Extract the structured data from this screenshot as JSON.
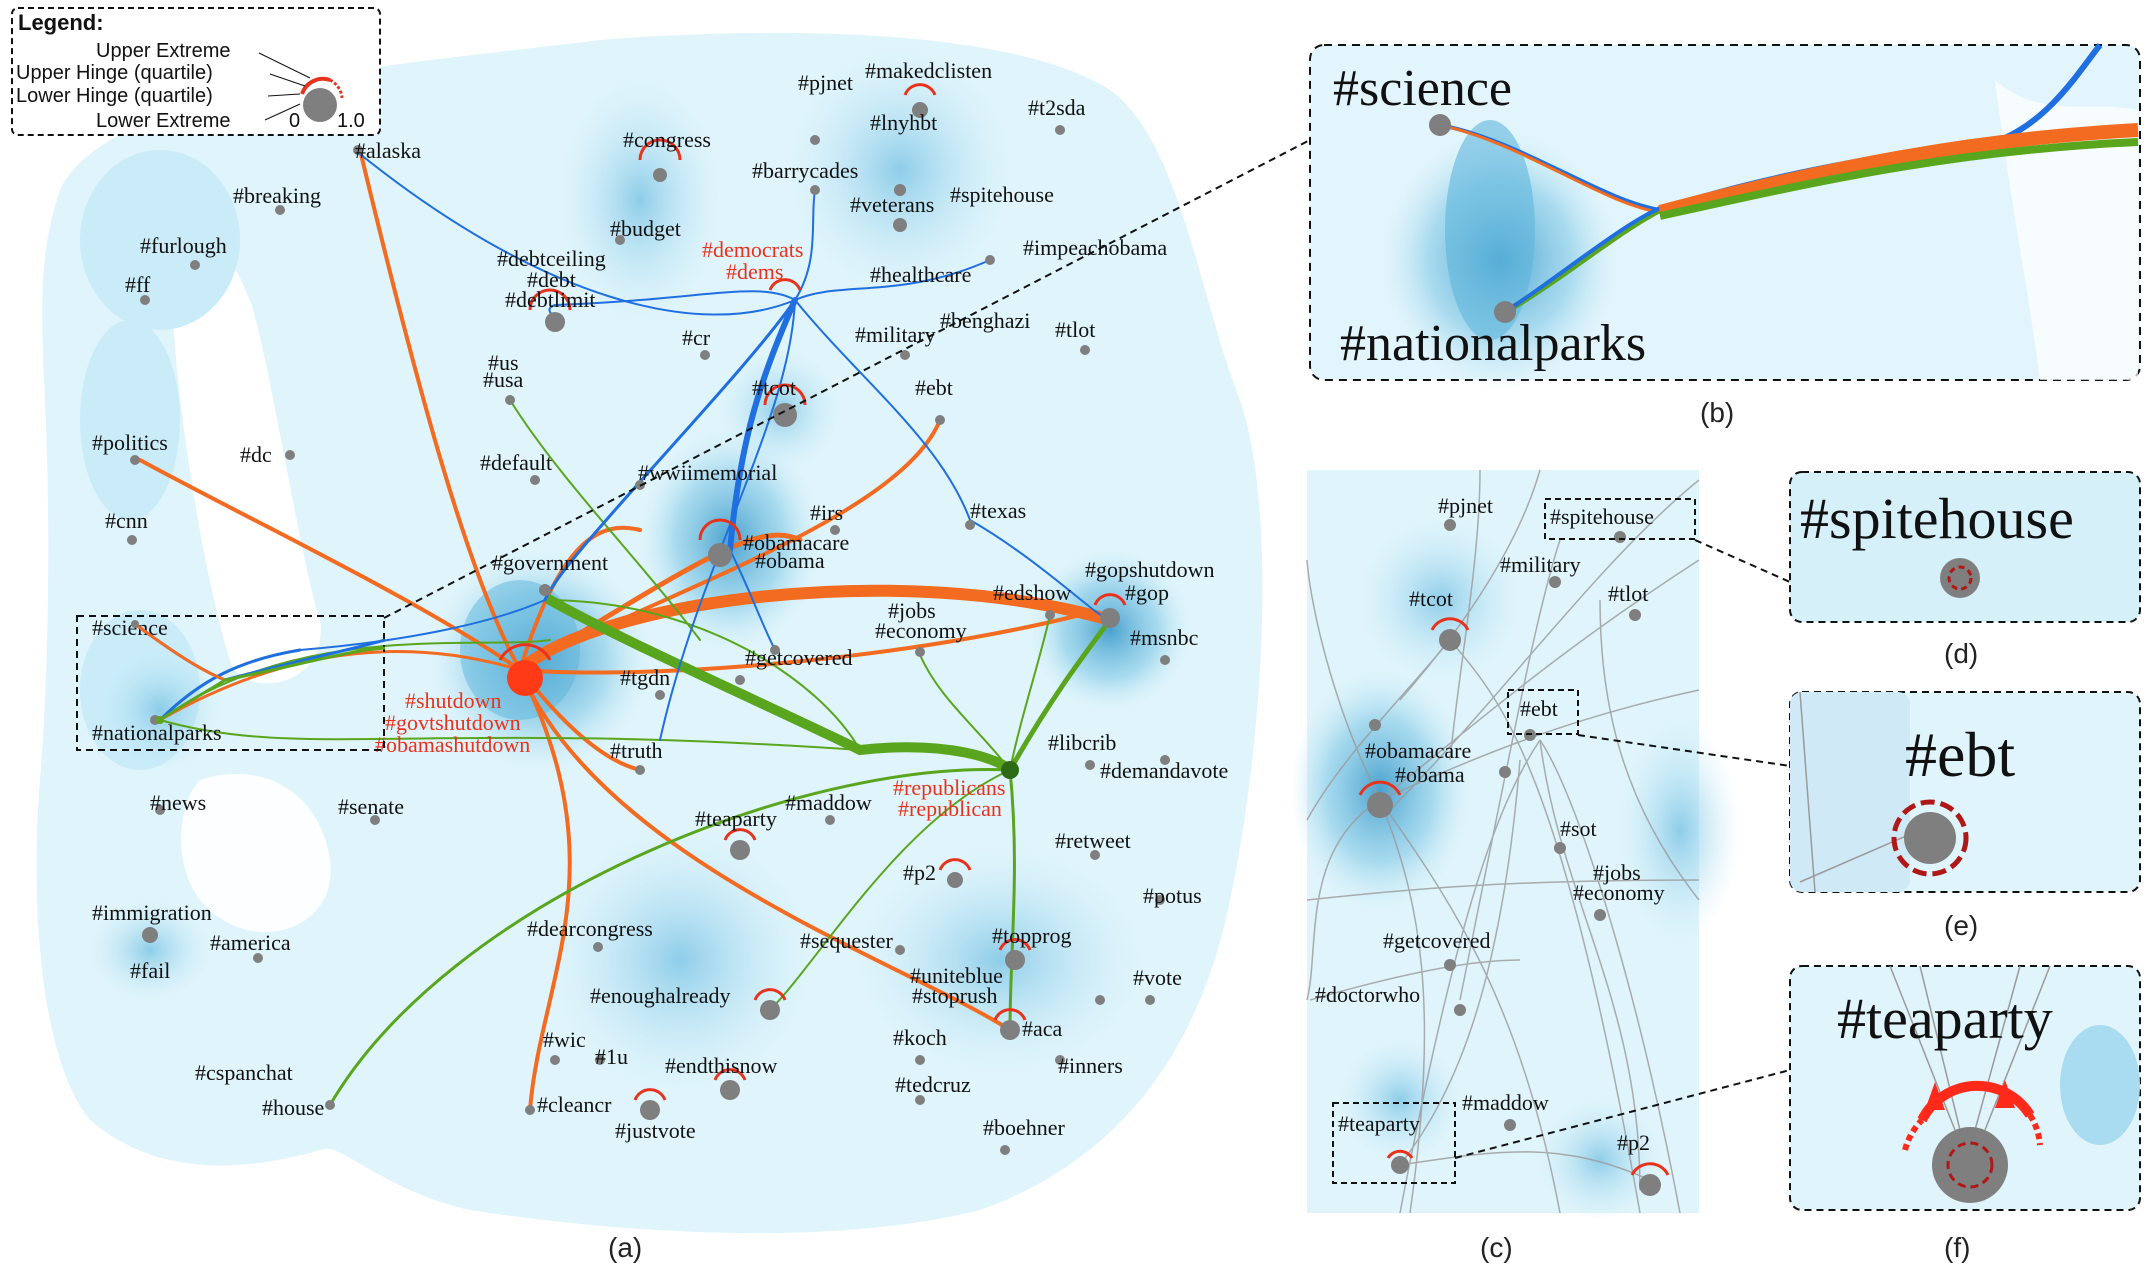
{
  "legend": {
    "title": "Legend:",
    "upper_extreme": "Upper Extreme",
    "upper_hinge": "Upper Hinge (quartile)",
    "lower_hinge": "Lower Hinge (quartile)",
    "lower_extreme": "Lower Extreme",
    "scale_min": "0",
    "scale_max": "1.0"
  },
  "captions": {
    "a": "(a)",
    "b": "(b)",
    "c": "(c)",
    "d": "(d)",
    "e": "(e)",
    "f": "(f)"
  },
  "colors": {
    "orange": "#f26b21",
    "green": "#5aa51e",
    "blue": "#1f6fe0",
    "red": "#e8331c",
    "node": "#7f7f7f",
    "bg": "#dff4fb"
  },
  "panel_a_labels": {
    "alaska": "#alaska",
    "breaking": "#breaking",
    "furlough": "#furlough",
    "ff": "#ff",
    "congress": "#congress",
    "budget": "#budget",
    "debtceiling": "#debtceiling",
    "debt": "#debt",
    "debtlimit": "#debtlimit",
    "democrats": "#democrats",
    "dems": "#dems",
    "barrycades": "#barrycades",
    "veterans": "#veterans",
    "spitehouse": "#spitehouse",
    "pjnet": "#pjnet",
    "makedclisten": "#makedclisten",
    "lnyhbt": "#lnyhbt",
    "t2sda": "#t2sda",
    "impeachobama": "#impeachobama",
    "healthcare": "#healthcare",
    "military": "#military",
    "benghazi": "#benghazi",
    "tlot": "#tlot",
    "cr": "#cr",
    "us": "#us",
    "usa": "#usa",
    "tcot": "#tcot",
    "ebt": "#ebt",
    "politics": "#politics",
    "dc": "#dc",
    "default": "#default",
    "wwiimemorial": "#wwiimemorial",
    "irs": "#irs",
    "cnn": "#cnn",
    "obamacare": "#obamacare",
    "obama": "#obama",
    "texas": "#texas",
    "government": "#government",
    "gopshutdown": "#gopshutdown",
    "gop": "#gop",
    "edshow": "#edshow",
    "jobs": "#jobs",
    "economy": "#economy",
    "msnbc": "#msnbc",
    "science": "#science",
    "getcovered": "#getcovered",
    "tgdn": "#tgdn",
    "shutdown": "#shutdown",
    "govtshutdown": "#govtshutdown",
    "obamashutdown": "#obamashutdown",
    "nationalparks": "#nationalparks",
    "truth": "#truth",
    "libcrib": "#libcrib",
    "demandavote": "#demandavote",
    "republicans": "#republicans",
    "republican": "#republican",
    "news": "#news",
    "senate": "#senate",
    "maddow": "#maddow",
    "teaparty": "#teaparty",
    "retweet": "#retweet",
    "p2": "#p2",
    "potus": "#potus",
    "immigration": "#immigration",
    "america": "#america",
    "fail": "#fail",
    "dearcongress": "#dearcongress",
    "sequester": "#sequester",
    "topprog": "#topprog",
    "uniteblue": "#uniteblue",
    "stoprush": "#stoprush",
    "vote": "#vote",
    "enoughalready": "#enoughalready",
    "aca": "#aca",
    "wic": "#wic",
    "one_u": "#1u",
    "endthisnow": "#endthisnow",
    "koch": "#koch",
    "inners": "#inners",
    "cspanchat": "#cspanchat",
    "house": "#house",
    "cleancr": "#cleancr",
    "justvote": "#justvote",
    "tedcruz": "#tedcruz",
    "boehner": "#boehner"
  },
  "panel_b": {
    "science": "#science",
    "nationalparks": "#nationalparks"
  },
  "panel_c_labels": {
    "pjnet": "#pjnet",
    "spitehouse": "#spitehouse",
    "military": "#military",
    "tcot": "#tcot",
    "tlot": "#tlot",
    "ebt": "#ebt",
    "obamacare": "#obamacare",
    "obama": "#obama",
    "sot": "#sot",
    "jobs": "#jobs",
    "economy": "#economy",
    "getcovered": "#getcovered",
    "doctorwho": "#doctorwho",
    "maddow": "#maddow",
    "teaparty": "#teaparty",
    "p2": "#p2"
  },
  "panel_d": "#spitehouse",
  "panel_e": "#ebt",
  "panel_f": "#teaparty"
}
